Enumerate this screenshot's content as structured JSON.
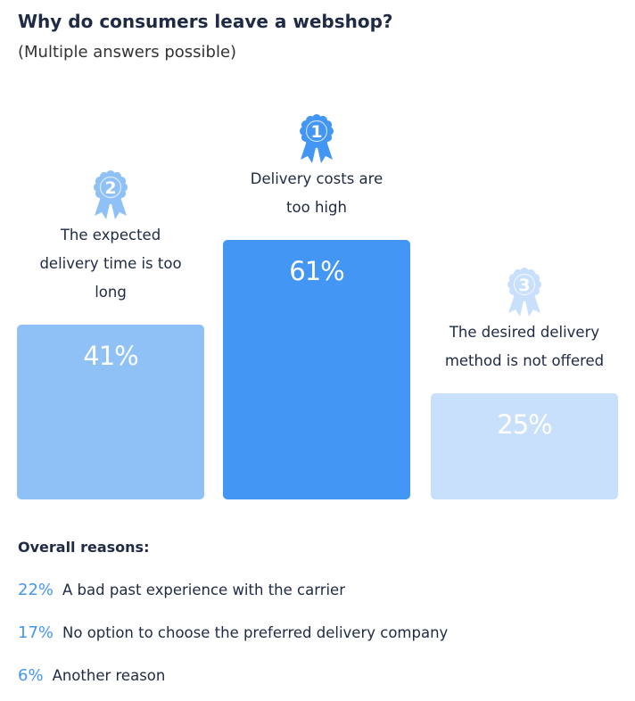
{
  "chart_data": {
    "type": "bar",
    "title": "Why do consumers leave a webshop?",
    "subtitle": "(Multiple answers possible)",
    "categories": [
      "The expected delivery time is too long",
      "Delivery costs are too high",
      "The desired delivery method is not offered"
    ],
    "ranks": [
      "2",
      "1",
      "3"
    ],
    "values": [
      41,
      61,
      25
    ],
    "value_labels": [
      "41%",
      "61%",
      "25%"
    ],
    "colors": [
      "#8fc1f7",
      "#4496f5",
      "#c8e0fb"
    ]
  },
  "reasons": {
    "title": "Overall reasons:",
    "items": [
      {
        "share": "22%",
        "text": "A bad past experience with the carrier"
      },
      {
        "share": "17%",
        "text": "No option to choose the preferred delivery company"
      },
      {
        "share": "6%",
        "text": "Another reason"
      }
    ]
  }
}
